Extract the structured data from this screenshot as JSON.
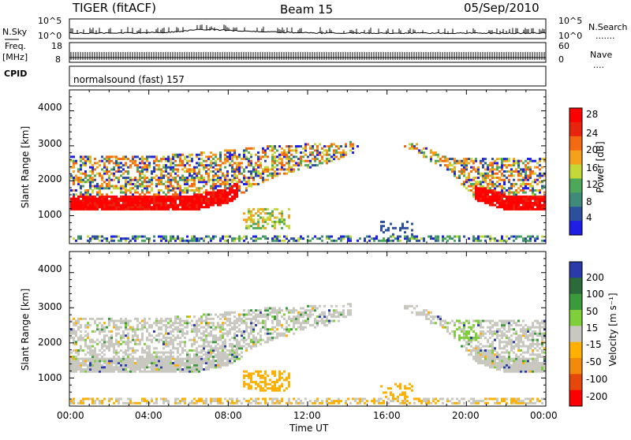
{
  "header": {
    "radar": "TIGER (fitACF)",
    "beam": "Beam 15",
    "date": "05/Sep/2010"
  },
  "strip_labels": {
    "nsky": "N.Sky",
    "nsearch": "N.Search",
    "nsearch_dots": ".......",
    "freq": "Freq.",
    "freq_unit": "[MHz]",
    "nave": "Nave",
    "nave_dots": "....",
    "cpid": "CPID",
    "cpid_text": "normalsound (fast) 157"
  },
  "chart_data": [
    {
      "type": "line",
      "name": "noise",
      "yticks_left": [
        "10^5",
        "10^0"
      ],
      "yticks_right": [
        "10^5",
        "10^0"
      ]
    },
    {
      "type": "line",
      "name": "frequency",
      "yticks_left": [
        "18",
        "8"
      ],
      "yticks_right": [
        "60",
        "0"
      ]
    },
    {
      "type": "heatmap",
      "name": "power",
      "ylabel": "Slant Range [km]",
      "yticks": [
        "1000",
        "2000",
        "3000",
        "4000"
      ],
      "ylim": [
        200,
        4600
      ],
      "xlim": [
        "00:00",
        "24:00"
      ],
      "colorbar_label": "Power [dB]",
      "colorbar_ticks": [
        "4",
        "8",
        "12",
        "16",
        "20",
        "24",
        "28"
      ]
    },
    {
      "type": "heatmap",
      "name": "velocity",
      "ylabel": "Slant Range [km]",
      "yticks": [
        "1000",
        "2000",
        "3000",
        "4000"
      ],
      "ylim": [
        200,
        4600
      ],
      "xticks": [
        "00:00",
        "04:00",
        "08:00",
        "12:00",
        "16:00",
        "20:00",
        "00:00"
      ],
      "xlabel": "Time UT",
      "colorbar_label": "Velocity [m s⁻¹]",
      "colorbar_ticks": [
        "200",
        "100",
        "50",
        "15",
        "-15",
        "-50",
        "-100",
        "-200"
      ]
    }
  ],
  "colors": {
    "power": [
      "#1e1ee6",
      "#2c4f9e",
      "#3f8a78",
      "#4fa75a",
      "#c5d83a",
      "#f5a11c",
      "#f46a12",
      "#e8240d",
      "#ff0000"
    ],
    "velocity": [
      "#2a3aa8",
      "#2d6a3a",
      "#3c9a3c",
      "#7ecf3a",
      "#c8c8c0",
      "#ffb000",
      "#f28a0c",
      "#e6470a",
      "#ff0000"
    ]
  }
}
